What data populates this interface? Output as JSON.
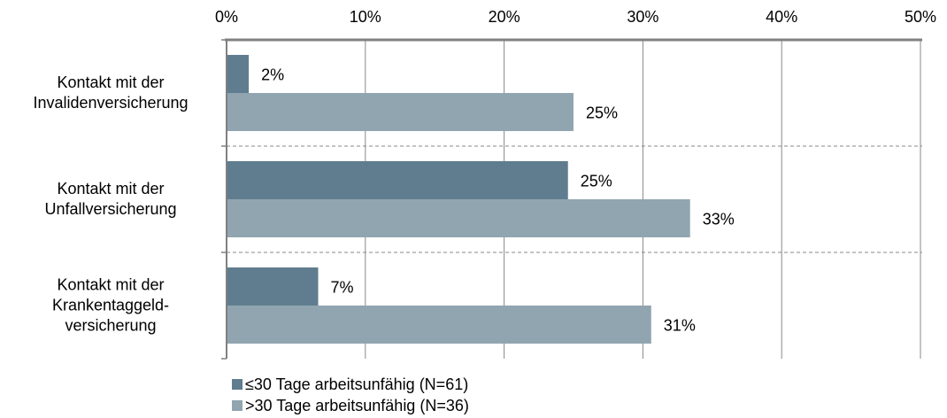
{
  "chart_data": {
    "type": "barh",
    "categories": [
      "Kontakt mit der\nInvalidenversicherung",
      "Kontakt mit der\nUnfallversicherung",
      "Kontakt mit der\nKrankentaggeld-\nversicherung"
    ],
    "series": [
      {
        "name": "≤30 Tage arbeitsunfähig (N=61)",
        "color": "#5f7d8e",
        "values": [
          1.6,
          24.6,
          6.6
        ],
        "value_labels": [
          "2%",
          "25%",
          "7%"
        ]
      },
      {
        "name": ">30 Tage arbeitsunfähig (N=36)",
        "color": "#91a5b0",
        "values": [
          25.0,
          33.4,
          30.6
        ],
        "value_labels": [
          "25%",
          "33%",
          "31%"
        ]
      }
    ],
    "xlim": [
      0,
      50
    ],
    "xticks": [
      {
        "value": 0,
        "label": "0%"
      },
      {
        "value": 10,
        "label": "10%"
      },
      {
        "value": 20,
        "label": "20%"
      },
      {
        "value": 30,
        "label": "30%"
      },
      {
        "value": 40,
        "label": "40%"
      },
      {
        "value": 50,
        "label": "50%"
      }
    ],
    "grid": true
  }
}
